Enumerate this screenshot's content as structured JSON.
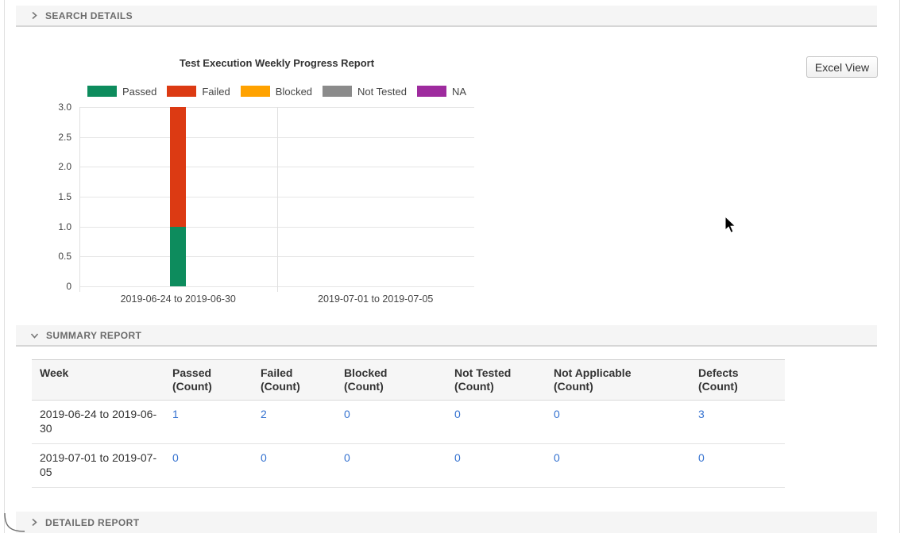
{
  "sections": {
    "search_details": {
      "label": "SEARCH DETAILS",
      "expanded": false
    },
    "summary_report": {
      "label": "SUMMARY REPORT",
      "expanded": true
    },
    "detailed_report": {
      "label": "DETAILED REPORT",
      "expanded": false
    }
  },
  "toolbar": {
    "excel_view_label": "Excel View"
  },
  "chart_data": {
    "type": "bar",
    "stacked": true,
    "title": "Test Execution Weekly Progress Report",
    "categories": [
      "2019-06-24 to 2019-06-30",
      "2019-07-01 to 2019-07-05"
    ],
    "series": [
      {
        "name": "Passed",
        "color": "#0d8c5d",
        "values": [
          1,
          0
        ]
      },
      {
        "name": "Failed",
        "color": "#dc3a13",
        "values": [
          2,
          0
        ]
      },
      {
        "name": "Blocked",
        "color": "#ffa200",
        "values": [
          0,
          0
        ]
      },
      {
        "name": "Not Tested",
        "color": "#8b8b8b",
        "values": [
          0,
          0
        ]
      },
      {
        "name": "NA",
        "color": "#9e2b9e",
        "values": [
          0,
          0
        ]
      }
    ],
    "xlabel": "",
    "ylabel": "",
    "ylim": [
      0,
      3
    ],
    "yticks": [
      "0",
      "0.5",
      "1.0",
      "1.5",
      "2.0",
      "2.5",
      "3.0"
    ],
    "legend_position": "top",
    "grid": true
  },
  "summary_table": {
    "columns": [
      {
        "title": "Week",
        "sub": ""
      },
      {
        "title": "Passed",
        "sub": "(Count)"
      },
      {
        "title": "Failed",
        "sub": "(Count)"
      },
      {
        "title": "Blocked",
        "sub": "(Count)"
      },
      {
        "title": "Not Tested",
        "sub": "(Count)"
      },
      {
        "title": "Not Applicable",
        "sub": "(Count)"
      },
      {
        "title": "Defects",
        "sub": "(Count)"
      }
    ],
    "rows": [
      {
        "week": "2019-06-24 to 2019-06-30",
        "values": [
          "1",
          "2",
          "0",
          "0",
          "0",
          "3"
        ]
      },
      {
        "week": "2019-07-01 to 2019-07-05",
        "values": [
          "0",
          "0",
          "0",
          "0",
          "0",
          "0"
        ]
      }
    ]
  },
  "colors": {
    "link": "#3572d0",
    "section_bar_bg": "#f5f5f5"
  }
}
